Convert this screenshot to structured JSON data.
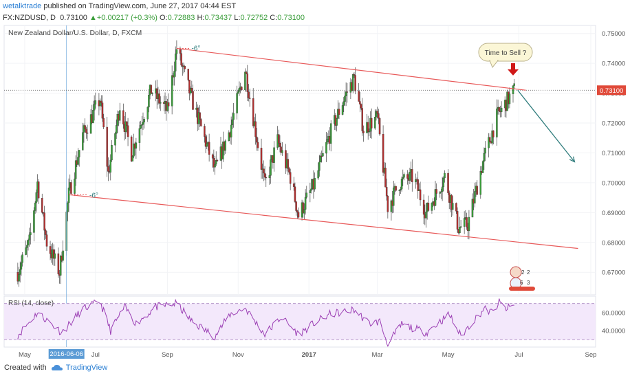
{
  "header": {
    "author": "wetalktrade",
    "published": "published on TradingView.com, June 27, 2017 04:44 EST"
  },
  "ohlc": {
    "symbol": "FX:NZDUSD, D",
    "last": "0.73100",
    "change_arrow": "▲",
    "change": "+0.00217 (+0.3%)",
    "o_label": "O:",
    "o": "0.72883",
    "h_label": "H:",
    "h": "0.73437",
    "l_label": "L:",
    "l": "0.72752",
    "c_label": "C:",
    "c": "0.73100"
  },
  "footer": {
    "created_with": "Created with",
    "brand": "TradingView"
  },
  "colors": {
    "up": "#3a9d3a",
    "down": "#b03030",
    "channel": "#e85a5a",
    "forecast": "#2f7c7c",
    "rsi_line": "#9b3fb4",
    "rsi_fill": "#f3e8fb",
    "price_badge": "#e04a3a"
  },
  "chart_data": {
    "type": "candlestick",
    "title": "New Zealand Dollar/U.S. Dollar, D, FXCM",
    "price_axis": {
      "range": [
        0.662,
        0.755
      ],
      "ticks": [
        "0.75000",
        "0.74000",
        "0.73000",
        "0.72000",
        "0.71000",
        "0.70000",
        "0.69000",
        "0.68000",
        "0.67000"
      ],
      "current_label": "0.73100"
    },
    "time_axis": {
      "labels": [
        "May",
        "2016-06-06",
        "Jul",
        "Sep",
        "Nov",
        "2017",
        "Mar",
        "May",
        "Jul",
        "Sep"
      ],
      "highlighted": "2016-06-06"
    },
    "price_path": [
      [
        "2016-04-25",
        0.67
      ],
      [
        "2016-05-05",
        0.68
      ],
      [
        "2016-05-12",
        0.7
      ],
      [
        "2016-05-20",
        0.68
      ],
      [
        "2016-05-31",
        0.67
      ],
      [
        "2016-06-08",
        0.696
      ],
      [
        "2016-06-20",
        0.716
      ],
      [
        "2016-07-05",
        0.728
      ],
      [
        "2016-07-12",
        0.703
      ],
      [
        "2016-07-22",
        0.726
      ],
      [
        "2016-08-01",
        0.71
      ],
      [
        "2016-08-18",
        0.731
      ],
      [
        "2016-09-01",
        0.724
      ],
      [
        "2016-09-09",
        0.745
      ],
      [
        "2016-09-22",
        0.728
      ],
      [
        "2016-10-12",
        0.704
      ],
      [
        "2016-10-25",
        0.718
      ],
      [
        "2016-11-07",
        0.738
      ],
      [
        "2016-11-24",
        0.699
      ],
      [
        "2016-12-05",
        0.714
      ],
      [
        "2016-12-16",
        0.702
      ],
      [
        "2016-12-23",
        0.689
      ],
      [
        "2017-01-05",
        0.699
      ],
      [
        "2017-01-19",
        0.716
      ],
      [
        "2017-02-01",
        0.729
      ],
      [
        "2017-02-09",
        0.735
      ],
      [
        "2017-02-17",
        0.718
      ],
      [
        "2017-03-01",
        0.722
      ],
      [
        "2017-03-10",
        0.692
      ],
      [
        "2017-03-20",
        0.7
      ],
      [
        "2017-04-01",
        0.702
      ],
      [
        "2017-04-12",
        0.69
      ],
      [
        "2017-04-28",
        0.702
      ],
      [
        "2017-05-10",
        0.685
      ],
      [
        "2017-05-18",
        0.686
      ],
      [
        "2017-05-31",
        0.707
      ],
      [
        "2017-06-12",
        0.722
      ],
      [
        "2017-06-20",
        0.727
      ],
      [
        "2017-06-27",
        0.731
      ]
    ],
    "channel": {
      "upper": [
        [
          "2016-09-09",
          0.745
        ],
        [
          "2017-07-07",
          0.731
        ]
      ],
      "lower": [
        [
          "2016-06-08",
          0.696
        ],
        [
          "2017-08-21",
          0.678
        ]
      ],
      "upper_handle_end": [
        "2016-09-20",
        0.745
      ],
      "lower_handle_end": [
        "2016-06-24",
        0.696
      ],
      "angle_upper": "-6°",
      "angle_lower": "-6°"
    },
    "forecast_arrow": [
      [
        "2017-06-30",
        0.731
      ],
      [
        "2017-08-18",
        0.707
      ]
    ],
    "sell_marker": [
      "2017-06-26",
      0.735
    ],
    "callout": "Time to Sell ?",
    "crosshair_date": "2016-06-06",
    "rsi": {
      "label": "RSI (14, close)",
      "range": [
        22,
        78
      ],
      "levels": [
        70,
        30
      ],
      "ticks": [
        "60.0000",
        "40.0000"
      ],
      "anchors": [
        [
          "2016-04-25",
          35
        ],
        [
          "2016-05-12",
          60
        ],
        [
          "2016-06-02",
          38
        ],
        [
          "2016-06-20",
          64
        ],
        [
          "2016-07-05",
          72
        ],
        [
          "2016-07-14",
          40
        ],
        [
          "2016-07-26",
          66
        ],
        [
          "2016-08-05",
          48
        ],
        [
          "2016-08-22",
          66
        ],
        [
          "2016-09-09",
          70
        ],
        [
          "2016-09-22",
          50
        ],
        [
          "2016-10-12",
          34
        ],
        [
          "2016-10-25",
          58
        ],
        [
          "2016-11-07",
          65
        ],
        [
          "2016-11-24",
          36
        ],
        [
          "2016-12-08",
          55
        ],
        [
          "2016-12-23",
          36
        ],
        [
          "2017-01-05",
          48
        ],
        [
          "2017-01-19",
          58
        ],
        [
          "2017-02-09",
          63
        ],
        [
          "2017-02-22",
          48
        ],
        [
          "2017-03-03",
          50
        ],
        [
          "2017-03-10",
          25
        ],
        [
          "2017-03-22",
          47
        ],
        [
          "2017-04-12",
          38
        ],
        [
          "2017-05-02",
          58
        ],
        [
          "2017-05-12",
          34
        ],
        [
          "2017-05-22",
          50
        ],
        [
          "2017-06-01",
          64
        ],
        [
          "2017-06-08",
          60
        ],
        [
          "2017-06-14",
          71
        ],
        [
          "2017-06-20",
          64
        ],
        [
          "2017-06-27",
          68
        ]
      ]
    }
  }
}
